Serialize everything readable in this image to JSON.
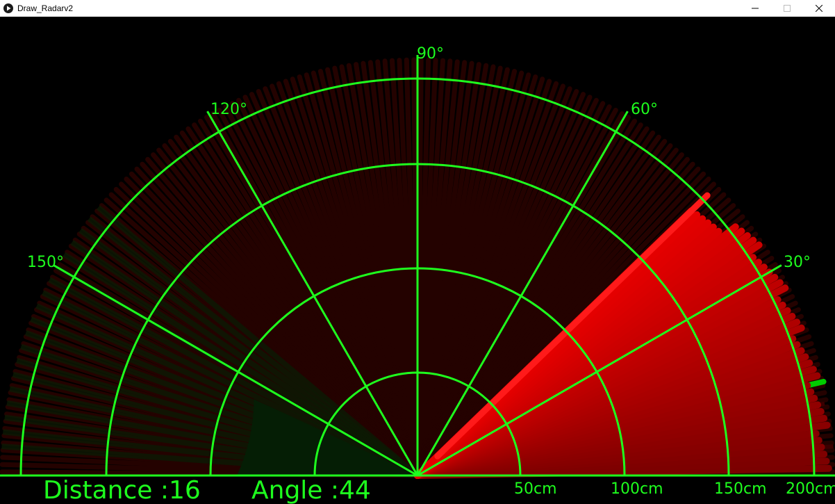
{
  "window": {
    "title": "Draw_Radarv2",
    "icon": "play-icon",
    "controls": [
      "minimize-icon",
      "maximize-icon",
      "close-icon"
    ]
  },
  "colors": {
    "accent": "#1eff1e",
    "sweep": "#ff1a1a",
    "detected": "#00dd00",
    "background": "#000000"
  },
  "radar": {
    "angle_labels": [
      {
        "deg": 30,
        "text": "30°"
      },
      {
        "deg": 60,
        "text": "60°"
      },
      {
        "deg": 90,
        "text": "90°"
      },
      {
        "deg": 120,
        "text": "120°"
      },
      {
        "deg": 150,
        "text": "150°"
      }
    ],
    "range_labels": [
      "50cm",
      "100cm",
      "150cm",
      "200cm"
    ],
    "distance_text": "Distance :16",
    "angle_text": "Angle :44",
    "current_angle": 44,
    "current_distance": 16
  }
}
